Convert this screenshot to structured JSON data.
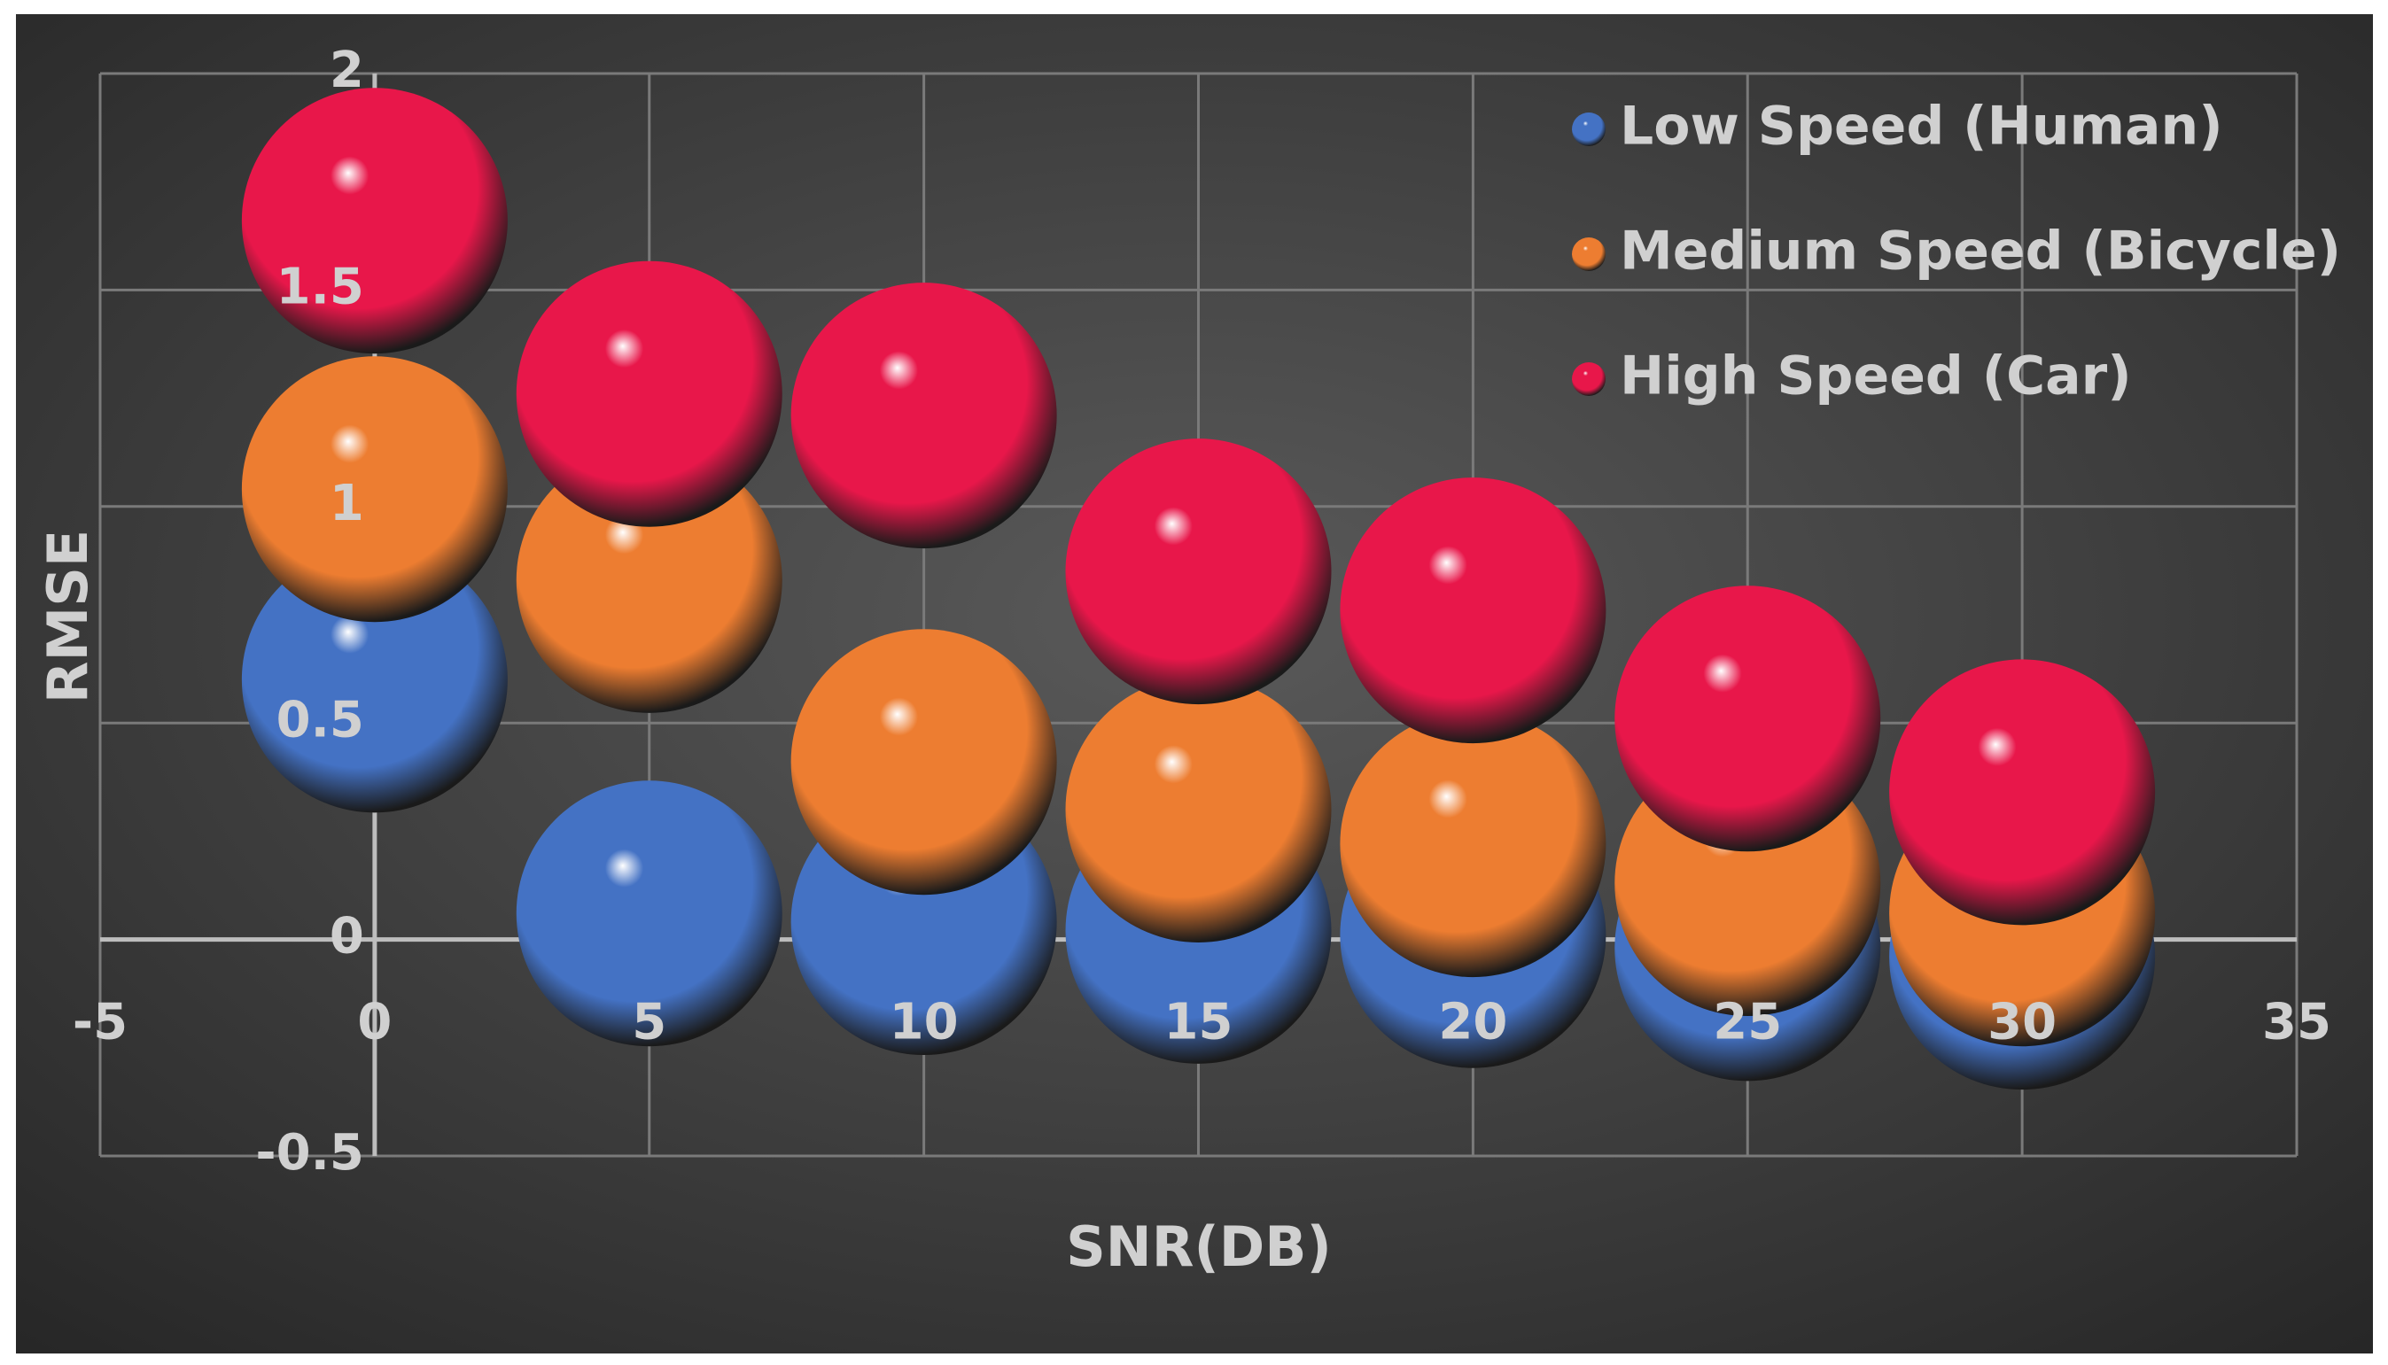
{
  "chart_data": {
    "type": "bubble",
    "x_label": "SNR(DB)",
    "y_label": "RMSE",
    "x": [
      0,
      5,
      10,
      15,
      20,
      25,
      30
    ],
    "series": [
      {
        "name": "Low Speed (Human)",
        "color": "#4472c4",
        "values": [
          0.6,
          0.06,
          0.04,
          0.02,
          0.01,
          -0.02,
          -0.04
        ]
      },
      {
        "name": "Medium Speed (Bicycle)",
        "color": "#ed7d31",
        "values": [
          1.04,
          0.83,
          0.41,
          0.3,
          0.22,
          0.13,
          0.06
        ]
      },
      {
        "name": "High Speed (Car)",
        "color": "#e8174a",
        "values": [
          1.66,
          1.26,
          1.21,
          0.85,
          0.76,
          0.51,
          0.34
        ]
      }
    ],
    "xlim": [
      -5,
      35
    ],
    "xticks": [
      -5,
      0,
      5,
      10,
      15,
      20,
      25,
      30,
      35
    ],
    "ylim": [
      -0.5,
      2
    ],
    "yticks": [
      -0.5,
      0,
      0.5,
      1,
      1.5,
      2
    ],
    "grid": true,
    "legend": "top-right"
  }
}
